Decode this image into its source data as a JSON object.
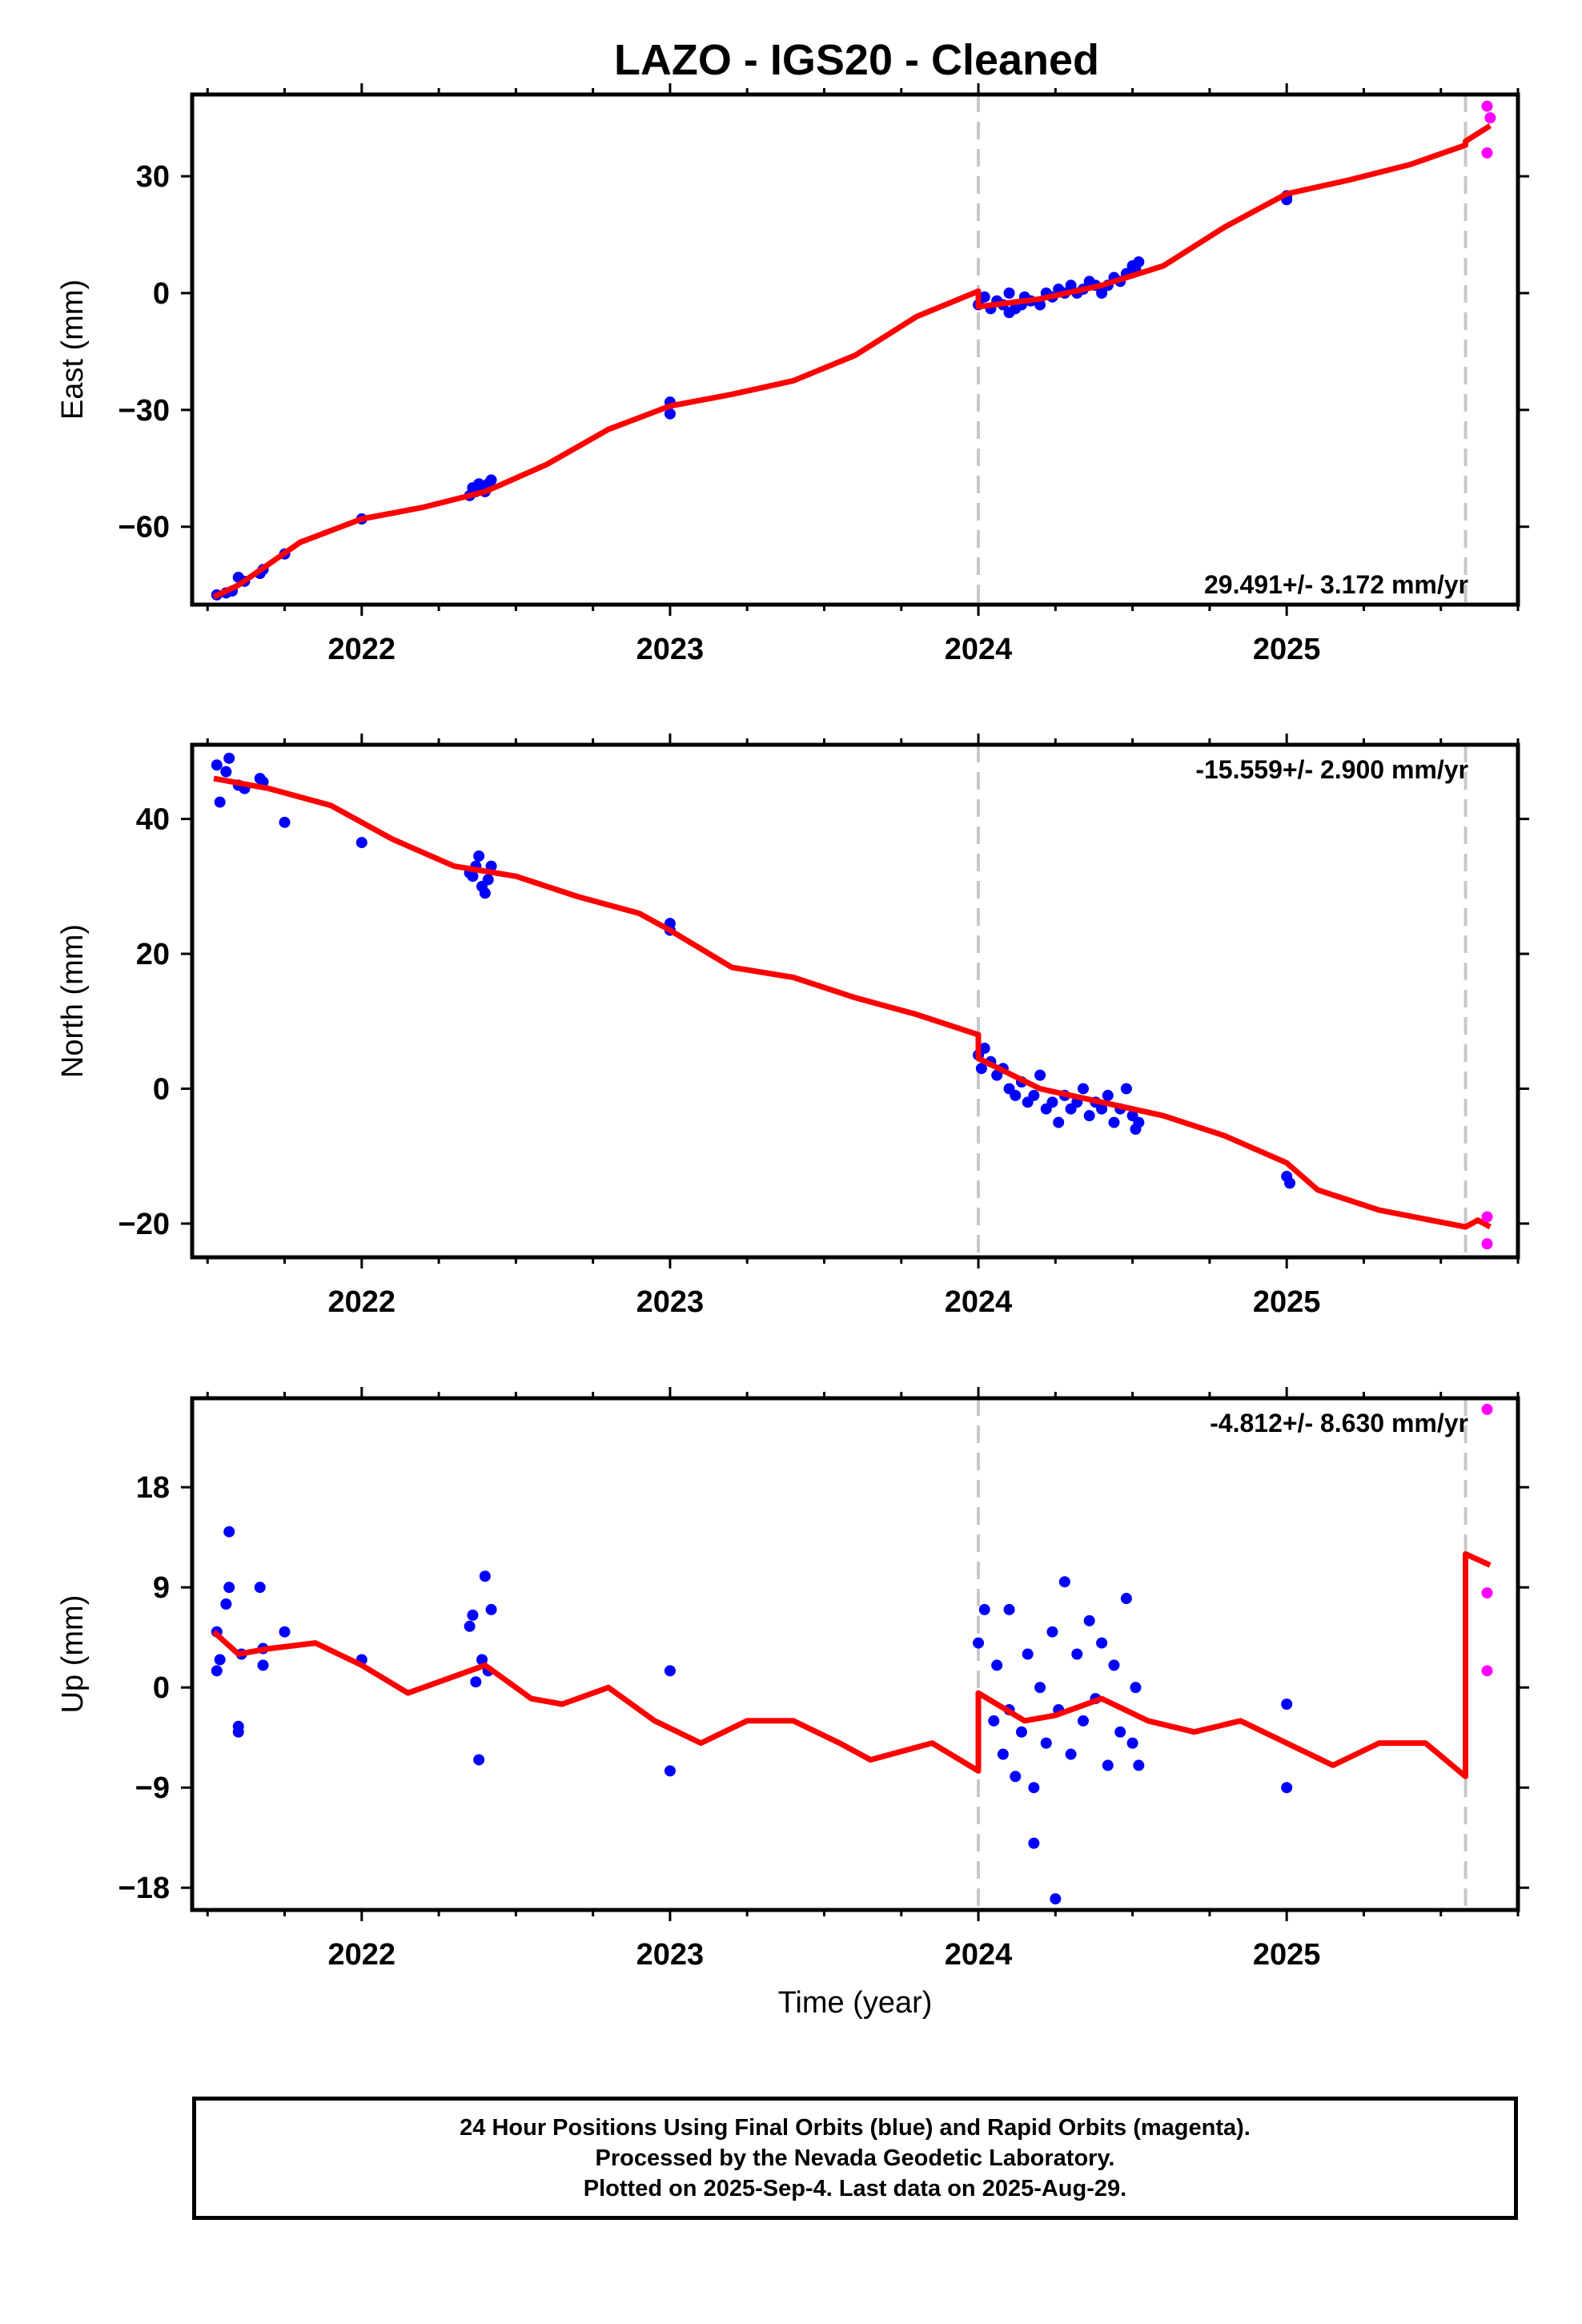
{
  "title": "LAZO  - IGS20 - Cleaned",
  "footer": {
    "line1": "24 Hour Positions Using Final Orbits (blue) and Rapid Orbits (magenta).",
    "line2": "Processed by the Nevada Geodetic Laboratory.",
    "line3": "Plotted on 2025-Sep-4. Last data on 2025-Aug-29."
  },
  "colors": {
    "final": "#0000ff",
    "rapid": "#ff00ff",
    "model": "#ff0000",
    "event_line": "#c8c8c8"
  },
  "chart_data": [
    {
      "type": "scatter",
      "ylabel": "East (mm)",
      "xlabel": "",
      "xlim": [
        2021.45,
        2025.75
      ],
      "ylim": [
        -80,
        51
      ],
      "yticks": [
        -60,
        -30,
        0,
        30
      ],
      "ytick_labels": [
        "−60",
        "−30",
        "0",
        "30"
      ],
      "xticks": [
        2022,
        2023,
        2024,
        2025
      ],
      "xtick_labels": [
        "2022",
        "2023",
        "2024",
        "2025"
      ],
      "event_lines": [
        2024.0,
        2025.58
      ],
      "rate_label": "29.491+/- 3.172 mm/yr",
      "rate_position": "bottom-right",
      "final_points": [
        [
          2021.53,
          -77.5
        ],
        [
          2021.56,
          -77
        ],
        [
          2021.58,
          -76.5
        ],
        [
          2021.6,
          -73
        ],
        [
          2021.62,
          -74
        ],
        [
          2021.67,
          -72
        ],
        [
          2021.68,
          -71
        ],
        [
          2021.75,
          -67
        ],
        [
          2022.0,
          -58
        ],
        [
          2022.35,
          -52
        ],
        [
          2022.36,
          -50
        ],
        [
          2022.37,
          -51
        ],
        [
          2022.38,
          -49
        ],
        [
          2022.39,
          -50
        ],
        [
          2022.4,
          -51
        ],
        [
          2022.41,
          -49
        ],
        [
          2022.42,
          -48
        ],
        [
          2023.0,
          -28
        ],
        [
          2023.0,
          -31
        ],
        [
          2024.0,
          -3
        ],
        [
          2024.02,
          -1
        ],
        [
          2024.04,
          -4
        ],
        [
          2024.06,
          -2
        ],
        [
          2024.08,
          -3
        ],
        [
          2024.1,
          0
        ],
        [
          2024.1,
          -5
        ],
        [
          2024.12,
          -4
        ],
        [
          2024.14,
          -3
        ],
        [
          2024.15,
          -1
        ],
        [
          2024.17,
          -2
        ],
        [
          2024.2,
          -3
        ],
        [
          2024.22,
          0
        ],
        [
          2024.24,
          -1
        ],
        [
          2024.26,
          1
        ],
        [
          2024.28,
          0
        ],
        [
          2024.3,
          2
        ],
        [
          2024.32,
          0
        ],
        [
          2024.34,
          1
        ],
        [
          2024.36,
          3
        ],
        [
          2024.38,
          2
        ],
        [
          2024.4,
          0
        ],
        [
          2024.42,
          2
        ],
        [
          2024.44,
          4
        ],
        [
          2024.46,
          3
        ],
        [
          2024.48,
          5
        ],
        [
          2024.5,
          7
        ],
        [
          2024.51,
          6
        ],
        [
          2024.52,
          8
        ],
        [
          2025.0,
          25
        ],
        [
          2025.0,
          24
        ]
      ],
      "rapid_points": [
        [
          2025.65,
          48
        ],
        [
          2025.66,
          45
        ],
        [
          2025.65,
          36
        ]
      ],
      "model": [
        [
          2021.52,
          -78
        ],
        [
          2021.6,
          -75
        ],
        [
          2021.8,
          -64
        ],
        [
          2022.0,
          -58
        ],
        [
          2022.2,
          -55
        ],
        [
          2022.4,
          -51
        ],
        [
          2022.6,
          -44
        ],
        [
          2022.8,
          -35
        ],
        [
          2023.0,
          -29
        ],
        [
          2023.2,
          -26
        ],
        [
          2023.4,
          -22.5
        ],
        [
          2023.6,
          -16
        ],
        [
          2023.8,
          -6
        ],
        [
          2024.0,
          0.5
        ],
        [
          2024.0,
          -3.5
        ],
        [
          2024.2,
          -1.5
        ],
        [
          2024.4,
          2
        ],
        [
          2024.6,
          7
        ],
        [
          2024.8,
          17
        ],
        [
          2025.0,
          25.5
        ],
        [
          2025.2,
          29
        ],
        [
          2025.4,
          33
        ],
        [
          2025.58,
          38
        ],
        [
          2025.58,
          39
        ],
        [
          2025.66,
          43
        ]
      ]
    },
    {
      "type": "scatter",
      "ylabel": "North (mm)",
      "xlabel": "",
      "xlim": [
        2021.45,
        2025.75
      ],
      "ylim": [
        -25,
        51
      ],
      "yticks": [
        -20,
        0,
        20,
        40
      ],
      "ytick_labels": [
        "−20",
        "0",
        "20",
        "40"
      ],
      "xticks": [
        2022,
        2023,
        2024,
        2025
      ],
      "xtick_labels": [
        "2022",
        "2023",
        "2024",
        "2025"
      ],
      "event_lines": [
        2024.0,
        2025.58
      ],
      "rate_label": "-15.559+/- 2.900 mm/yr",
      "rate_position": "top-right",
      "final_points": [
        [
          2021.53,
          48
        ],
        [
          2021.54,
          42.5
        ],
        [
          2021.56,
          47
        ],
        [
          2021.57,
          49
        ],
        [
          2021.6,
          45
        ],
        [
          2021.62,
          44.5
        ],
        [
          2021.67,
          46
        ],
        [
          2021.68,
          45.5
        ],
        [
          2021.75,
          39.5
        ],
        [
          2022.0,
          36.5
        ],
        [
          2022.35,
          32
        ],
        [
          2022.36,
          31.5
        ],
        [
          2022.37,
          33
        ],
        [
          2022.38,
          34.5
        ],
        [
          2022.39,
          30
        ],
        [
          2022.4,
          29
        ],
        [
          2022.41,
          31
        ],
        [
          2022.42,
          33
        ],
        [
          2023.0,
          24.5
        ],
        [
          2023.0,
          23.5
        ],
        [
          2024.0,
          5
        ],
        [
          2024.01,
          3
        ],
        [
          2024.02,
          6
        ],
        [
          2024.04,
          4
        ],
        [
          2024.06,
          2
        ],
        [
          2024.08,
          3
        ],
        [
          2024.1,
          0
        ],
        [
          2024.12,
          -1
        ],
        [
          2024.14,
          1
        ],
        [
          2024.16,
          -2
        ],
        [
          2024.18,
          -1
        ],
        [
          2024.2,
          2
        ],
        [
          2024.22,
          -3
        ],
        [
          2024.24,
          -2
        ],
        [
          2024.26,
          -5
        ],
        [
          2024.28,
          -1
        ],
        [
          2024.3,
          -3
        ],
        [
          2024.32,
          -2
        ],
        [
          2024.34,
          0
        ],
        [
          2024.36,
          -4
        ],
        [
          2024.38,
          -2
        ],
        [
          2024.4,
          -3
        ],
        [
          2024.42,
          -1
        ],
        [
          2024.44,
          -5
        ],
        [
          2024.46,
          -3
        ],
        [
          2024.48,
          0
        ],
        [
          2024.5,
          -4
        ],
        [
          2024.51,
          -6
        ],
        [
          2024.52,
          -5
        ],
        [
          2025.0,
          -13
        ],
        [
          2025.01,
          -14
        ]
      ],
      "rapid_points": [
        [
          2025.65,
          -19
        ],
        [
          2025.65,
          -23
        ]
      ],
      "model": [
        [
          2021.52,
          46
        ],
        [
          2021.7,
          44.5
        ],
        [
          2021.9,
          42
        ],
        [
          2022.1,
          37
        ],
        [
          2022.3,
          33
        ],
        [
          2022.5,
          31.5
        ],
        [
          2022.7,
          28.5
        ],
        [
          2022.9,
          26
        ],
        [
          2023.0,
          23.5
        ],
        [
          2023.2,
          18
        ],
        [
          2023.4,
          16.5
        ],
        [
          2023.6,
          13.5
        ],
        [
          2023.8,
          11
        ],
        [
          2024.0,
          8
        ],
        [
          2024.0,
          4.5
        ],
        [
          2024.2,
          0
        ],
        [
          2024.4,
          -2
        ],
        [
          2024.6,
          -4
        ],
        [
          2024.8,
          -7
        ],
        [
          2025.0,
          -11
        ],
        [
          2025.1,
          -15
        ],
        [
          2025.3,
          -18
        ],
        [
          2025.58,
          -20.5
        ],
        [
          2025.62,
          -19.5
        ],
        [
          2025.66,
          -20.5
        ]
      ]
    },
    {
      "type": "scatter",
      "ylabel": "Up (mm)",
      "xlabel": "Time (year)",
      "xlim": [
        2021.45,
        2025.75
      ],
      "ylim": [
        -20,
        26
      ],
      "yticks": [
        -18,
        -9,
        0,
        9,
        18
      ],
      "ytick_labels": [
        "−18",
        "−9",
        "0",
        "9",
        "18"
      ],
      "xticks": [
        2022,
        2023,
        2024,
        2025
      ],
      "xtick_labels": [
        "2022",
        "2023",
        "2024",
        "2025"
      ],
      "event_lines": [
        2024.0,
        2025.58
      ],
      "rate_label": "-4.812+/- 8.630 mm/yr",
      "rate_position": "top-right",
      "final_points": [
        [
          2021.53,
          5
        ],
        [
          2021.53,
          1.5
        ],
        [
          2021.54,
          2.5
        ],
        [
          2021.56,
          7.5
        ],
        [
          2021.57,
          14
        ],
        [
          2021.57,
          9
        ],
        [
          2021.6,
          -3.5
        ],
        [
          2021.6,
          -4
        ],
        [
          2021.61,
          3
        ],
        [
          2021.67,
          9
        ],
        [
          2021.68,
          2
        ],
        [
          2021.68,
          3.5
        ],
        [
          2021.75,
          5
        ],
        [
          2022.0,
          2.5
        ],
        [
          2022.35,
          5.5
        ],
        [
          2022.36,
          6.5
        ],
        [
          2022.37,
          0.5
        ],
        [
          2022.38,
          -6.5
        ],
        [
          2022.39,
          2.5
        ],
        [
          2022.4,
          10
        ],
        [
          2022.41,
          1.5
        ],
        [
          2022.42,
          7
        ],
        [
          2023.0,
          1.5
        ],
        [
          2023.0,
          -7.5
        ],
        [
          2024.0,
          4
        ],
        [
          2024.02,
          7
        ],
        [
          2024.05,
          -3
        ],
        [
          2024.06,
          2
        ],
        [
          2024.08,
          -6
        ],
        [
          2024.1,
          -2
        ],
        [
          2024.1,
          7
        ],
        [
          2024.12,
          -8
        ],
        [
          2024.14,
          -4
        ],
        [
          2024.16,
          3
        ],
        [
          2024.18,
          -9
        ],
        [
          2024.18,
          -14
        ],
        [
          2024.2,
          0
        ],
        [
          2024.22,
          -5
        ],
        [
          2024.24,
          5
        ],
        [
          2024.25,
          -19
        ],
        [
          2024.26,
          -2
        ],
        [
          2024.28,
          9.5
        ],
        [
          2024.3,
          -6
        ],
        [
          2024.32,
          3
        ],
        [
          2024.34,
          -3
        ],
        [
          2024.36,
          6
        ],
        [
          2024.38,
          -1
        ],
        [
          2024.4,
          4
        ],
        [
          2024.42,
          -7
        ],
        [
          2024.44,
          2
        ],
        [
          2024.46,
          -4
        ],
        [
          2024.48,
          8
        ],
        [
          2024.5,
          -5
        ],
        [
          2024.51,
          0
        ],
        [
          2024.52,
          -7
        ],
        [
          2025.0,
          -1.5
        ],
        [
          2025.0,
          -9
        ]
      ],
      "rapid_points": [
        [
          2025.65,
          25
        ],
        [
          2025.65,
          8.5
        ],
        [
          2025.65,
          1.5
        ]
      ],
      "model": [
        [
          2021.52,
          5
        ],
        [
          2021.6,
          3
        ],
        [
          2021.7,
          3.5
        ],
        [
          2021.85,
          4
        ],
        [
          2022.0,
          2
        ],
        [
          2022.15,
          -0.5
        ],
        [
          2022.3,
          1
        ],
        [
          2022.4,
          2
        ],
        [
          2022.55,
          -1
        ],
        [
          2022.65,
          -1.5
        ],
        [
          2022.8,
          0
        ],
        [
          2022.95,
          -3
        ],
        [
          2023.1,
          -5
        ],
        [
          2023.25,
          -3
        ],
        [
          2023.4,
          -3
        ],
        [
          2023.55,
          -5
        ],
        [
          2023.65,
          -6.5
        ],
        [
          2023.85,
          -5
        ],
        [
          2024.0,
          -7.5
        ],
        [
          2024.0,
          -0.5
        ],
        [
          2024.15,
          -3
        ],
        [
          2024.25,
          -2.5
        ],
        [
          2024.4,
          -1
        ],
        [
          2024.55,
          -3
        ],
        [
          2024.7,
          -4
        ],
        [
          2024.85,
          -3
        ],
        [
          2025.0,
          -5
        ],
        [
          2025.15,
          -7
        ],
        [
          2025.3,
          -5
        ],
        [
          2025.45,
          -5
        ],
        [
          2025.58,
          -8
        ],
        [
          2025.58,
          12
        ],
        [
          2025.66,
          11
        ]
      ]
    }
  ]
}
